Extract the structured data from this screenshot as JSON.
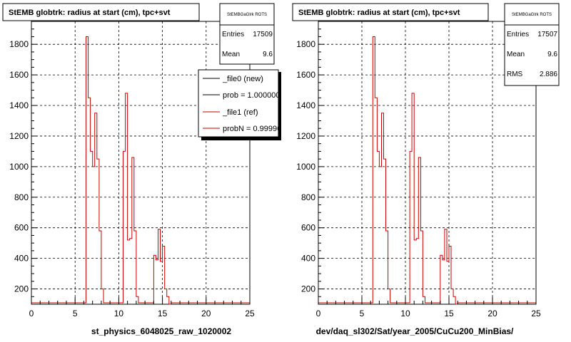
{
  "chart_data": [
    {
      "type": "histogram",
      "title": "StEMB globtrk: radius at start (cm), tpc+svt",
      "xlabel": "st_physics_6048025_raw_1020002",
      "xlim": [
        0,
        25
      ],
      "ylim": [
        100,
        1950
      ],
      "x_ticks": [
        "0",
        "5",
        "10",
        "15",
        "20",
        "25"
      ],
      "y_ticks": [
        "200",
        "400",
        "600",
        "800",
        "1000",
        "1200",
        "1400",
        "1600",
        "1800"
      ],
      "grid": true,
      "stats": {
        "name": "StEMBGaGlrk ROTS",
        "rows": [
          {
            "label": "Entries",
            "value": "17509"
          },
          {
            "label": "Mean",
            "value": "9.6"
          }
        ]
      },
      "legend": {
        "position": "top-right",
        "entries": [
          {
            "label": "_file0 (new)",
            "color": "#000000"
          },
          {
            "label": "prob = 1.000000",
            "color": "#000000"
          },
          {
            "label": "_file1 (ref)",
            "color": "#cc0000"
          },
          {
            "label": "probN = 0.99996",
            "color": "#cc0000"
          }
        ]
      },
      "series": [
        {
          "color": "#cc0000",
          "x": [
            6.25,
            6.5,
            6.75,
            7.0,
            7.25,
            7.5,
            7.75,
            8.0,
            10.5,
            10.75,
            11.0,
            11.25,
            11.5,
            11.75,
            12.0,
            14.0,
            14.25,
            14.5,
            14.75,
            15.0,
            15.25,
            15.5,
            15.75
          ],
          "y": [
            1850,
            1450,
            1100,
            1000,
            1350,
            1050,
            580,
            200,
            1100,
            1480,
            520,
            530,
            1060,
            580,
            150,
            420,
            390,
            590,
            380,
            480,
            200,
            150,
            100
          ]
        }
      ]
    },
    {
      "type": "histogram",
      "title": "StEMB globtrk: radius at start (cm), tpc+svt",
      "xlabel": "dev/daq_sl302/Sat/year_2005/CuCu200_MinBias/",
      "xlim": [
        0,
        25
      ],
      "ylim": [
        100,
        1950
      ],
      "x_ticks": [
        "0",
        "5",
        "10",
        "15",
        "20",
        "25"
      ],
      "y_ticks": [
        "200",
        "400",
        "600",
        "800",
        "1000",
        "1200",
        "1400",
        "1600",
        "1800"
      ],
      "grid": true,
      "stats": {
        "name": "StEMBGaGlrk ROTS",
        "rows": [
          {
            "label": "Entries",
            "value": "17507"
          },
          {
            "label": "Mean",
            "value": "9.6"
          },
          {
            "label": "RMS",
            "value": "2.886"
          }
        ]
      },
      "series": [
        {
          "color": "#cc0000",
          "x": [
            6.25,
            6.5,
            6.75,
            7.0,
            7.25,
            7.5,
            7.75,
            8.0,
            10.5,
            10.75,
            11.0,
            11.25,
            11.5,
            11.75,
            12.0,
            14.0,
            14.25,
            14.5,
            14.75,
            15.0,
            15.25,
            15.5,
            15.75
          ],
          "y": [
            1850,
            1450,
            1100,
            1000,
            1350,
            1050,
            580,
            200,
            1100,
            1480,
            520,
            530,
            1060,
            580,
            150,
            420,
            390,
            590,
            380,
            480,
            200,
            150,
            100
          ]
        }
      ]
    }
  ]
}
